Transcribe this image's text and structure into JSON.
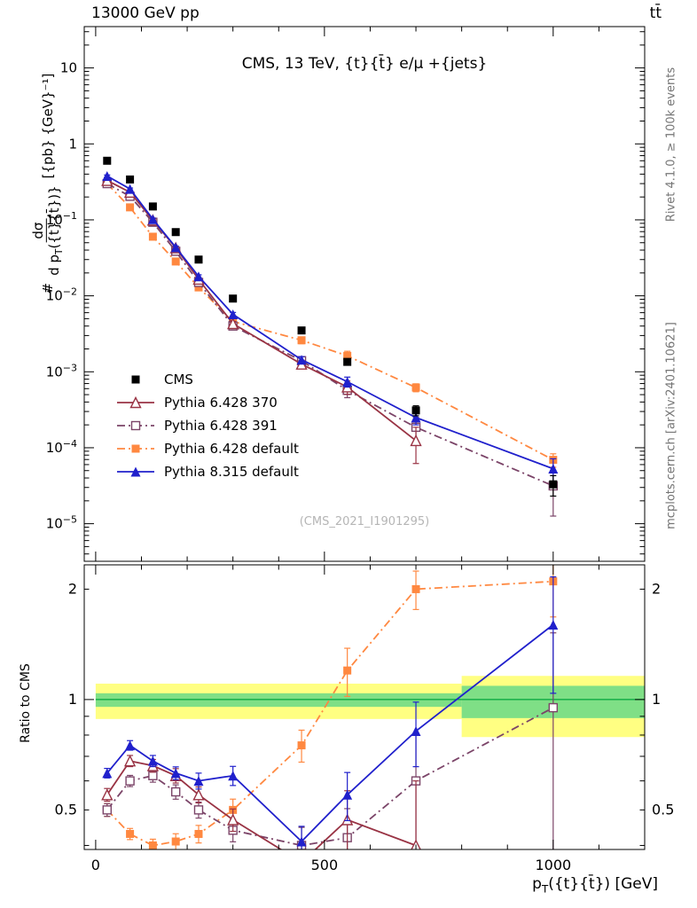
{
  "header": {
    "beam": "13000 GeV pp",
    "process": "tt̄"
  },
  "watermarks": {
    "analysis": "(CMS_2021_I1901295)",
    "rivet": "Rivet 4.1.0, ≥ 100k events",
    "mcplots": "mcplots.cern.ch [arXiv:2401.10621]"
  },
  "axes": {
    "y_main_prefix": "#",
    "y_main_num": "dσ",
    "y_main_den_pre": "d p",
    "y_main_den_sub": "T",
    "y_main_den_post": "({t}{t̄})}",
    "y_main_units": "[{pb} {GeV}⁻¹]",
    "x_pre": "p",
    "x_sub": "T",
    "x_post": "({t}{t̄}) [GeV]",
    "ratio_label": "Ratio to CMS"
  },
  "chart_data": {
    "type": "line",
    "title": "CMS, 13 TeV, {t}{t̄} e/μ +{jets}",
    "xlabel": "p_T({t}{t̄}) [GeV]",
    "ylabel": "# dσ/d p_T({t}{t̄}) [{pb} {GeV}⁻¹]",
    "ylabel_ratio": "Ratio to CMS",
    "watermark": "(CMS_2021_I1901295)",
    "legend_position": "left-middle",
    "grid": false,
    "x_range": [
      -25,
      1200
    ],
    "y_range_main": [
      3.2e-06,
      35
    ],
    "y_range_ratio": [
      0.39,
      2.33
    ],
    "x_ticks": [
      0,
      500,
      1000
    ],
    "x_minor_step": 100,
    "y_tick_exponents_main": [
      1,
      0,
      -1,
      -2,
      -3,
      -4,
      -5
    ],
    "ratio_tick_labels": [
      0.5,
      1,
      2
    ],
    "ratio_minor_ticks": [
      0.4,
      0.5,
      0.6,
      0.7,
      0.8,
      0.9,
      2
    ],
    "series": [
      {
        "name": "cms",
        "label": "CMS",
        "color": "#000000",
        "marker": "square-filled",
        "line": "none",
        "x": [
          25,
          75,
          125,
          175,
          225,
          300,
          450,
          550,
          700,
          1000
        ],
        "values": [
          0.6,
          0.34,
          0.15,
          0.069,
          0.03,
          0.0092,
          0.0035,
          0.00135,
          0.00031,
          3.3e-05
        ],
        "rel_err": [
          0.03,
          0.03,
          0.035,
          0.04,
          0.045,
          0.05,
          0.07,
          0.09,
          0.15,
          0.3
        ]
      },
      {
        "name": "pythia6-370",
        "label": "Pythia 6.428 370",
        "color": "#993344",
        "marker": "triangle-open",
        "line": "solid",
        "x": [
          25,
          75,
          125,
          175,
          225,
          300,
          450,
          550,
          700
        ],
        "values": [
          0.33,
          0.231,
          0.099,
          0.0428,
          0.0165,
          0.0043,
          0.00126,
          0.00063,
          0.000124
        ],
        "ratio": [
          0.55,
          0.68,
          0.66,
          0.62,
          0.55,
          0.47,
          0.36,
          0.47,
          0.4
        ],
        "rel_err": [
          0.04,
          0.035,
          0.04,
          0.045,
          0.05,
          0.07,
          0.12,
          0.2,
          0.5
        ]
      },
      {
        "name": "pythia6-391",
        "label": "Pythia 6.428 391",
        "color": "#7b4468",
        "marker": "square-open",
        "line": "dashdot",
        "x": [
          25,
          75,
          125,
          175,
          225,
          300,
          450,
          550,
          700,
          1000
        ],
        "values": [
          0.3,
          0.204,
          0.093,
          0.0386,
          0.015,
          0.004,
          0.0014,
          0.00057,
          0.000186,
          3.15e-05
        ],
        "ratio": [
          0.5,
          0.6,
          0.62,
          0.56,
          0.5,
          0.44,
          0.4,
          0.42,
          0.6,
          0.95
        ],
        "rel_err": [
          0.04,
          0.035,
          0.04,
          0.045,
          0.05,
          0.07,
          0.12,
          0.2,
          0.35,
          0.6
        ]
      },
      {
        "name": "pythia6-default",
        "label": "Pythia 6.428 default",
        "color": "#ff8840",
        "marker": "square-filled",
        "line": "dashdot",
        "x": [
          25,
          75,
          125,
          175,
          225,
          300,
          450,
          550,
          700,
          1000
        ],
        "values": [
          0.3,
          0.146,
          0.06,
          0.0283,
          0.0129,
          0.0046,
          0.0026,
          0.00162,
          0.00062,
          6.93e-05
        ],
        "ratio": [
          0.5,
          0.43,
          0.4,
          0.41,
          0.43,
          0.5,
          0.75,
          1.2,
          2.0,
          2.1
        ],
        "rel_err": [
          0.04,
          0.035,
          0.04,
          0.05,
          0.055,
          0.07,
          0.1,
          0.15,
          0.12,
          0.2
        ]
      },
      {
        "name": "pythia8-default",
        "label": "Pythia 8.315 default",
        "color": "#2020cc",
        "marker": "triangle-filled",
        "line": "solid",
        "x": [
          25,
          75,
          125,
          175,
          225,
          300,
          450,
          550,
          700,
          1000
        ],
        "values": [
          0.378,
          0.255,
          0.102,
          0.0435,
          0.018,
          0.0057,
          0.00144,
          0.00074,
          0.00025,
          5.3e-05
        ],
        "ratio": [
          0.63,
          0.75,
          0.68,
          0.63,
          0.6,
          0.62,
          0.41,
          0.55,
          0.82,
          1.6
        ],
        "rel_err": [
          0.03,
          0.03,
          0.035,
          0.04,
          0.05,
          0.06,
          0.1,
          0.15,
          0.2,
          0.35
        ]
      }
    ],
    "ratio_bands": {
      "yellow_color": "#ffff82",
      "green_color": "#7fdf86",
      "line_color": "#00a53c",
      "segments": [
        {
          "x0": 0,
          "x1": 800,
          "yellow": [
            0.885,
            1.105
          ],
          "green": [
            0.955,
            1.04
          ]
        },
        {
          "x0": 800,
          "x1": 1200,
          "yellow": [
            0.79,
            1.16
          ],
          "green": [
            0.89,
            1.09
          ]
        }
      ]
    }
  }
}
